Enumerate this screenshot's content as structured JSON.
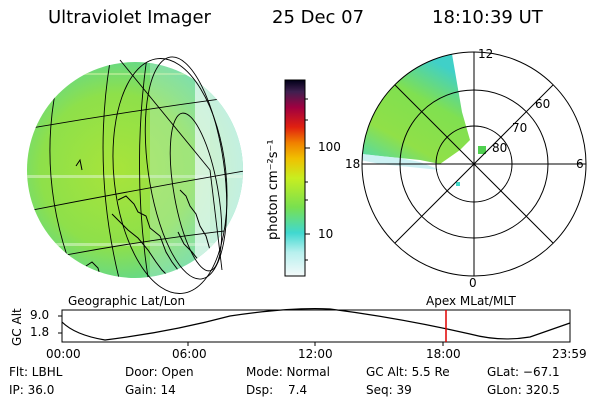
{
  "header": {
    "instrument": "Ultraviolet Imager",
    "date": "25 Dec 07",
    "time": "18:10:39 UT"
  },
  "colorbar": {
    "unit_label": "photon cm⁻²s⁻¹",
    "ticks": [
      "100",
      "10"
    ],
    "stops": [
      "#f0f8f8",
      "#50e0d0",
      "#80e040",
      "#d8f000",
      "#f0a000",
      "#e02020",
      "#a00040",
      "#502060",
      "#000010"
    ]
  },
  "polar_plot": {
    "labels": {
      "top": "12",
      "left": "18",
      "right": "6",
      "bottom": "0"
    },
    "lat_labels": [
      "60",
      "70",
      "80"
    ]
  },
  "timeline": {
    "left_title": "Geographic Lat/Lon",
    "right_title": "Apex  MLat/MLT",
    "y_axis_title": "GC Alt",
    "y_ticks": [
      "9.0",
      "1.8"
    ],
    "x_ticks": [
      "00:00",
      "06:00",
      "12:00",
      "18:00",
      "23:59"
    ],
    "marker_color": "#e00000"
  },
  "info": {
    "flt": "Flt: LBHL",
    "ip": "IP: 36.0",
    "door": "Door: Open",
    "gain": "Gain: 14",
    "mode": "Mode: Normal",
    "dsp_label": "Dsp:",
    "dsp_value": "7.4",
    "gc_alt": "GC Alt: 5.5 Re",
    "seq": "Seq: 39",
    "glat": "GLat: −67.1",
    "glon": "GLon: 320.5"
  }
}
